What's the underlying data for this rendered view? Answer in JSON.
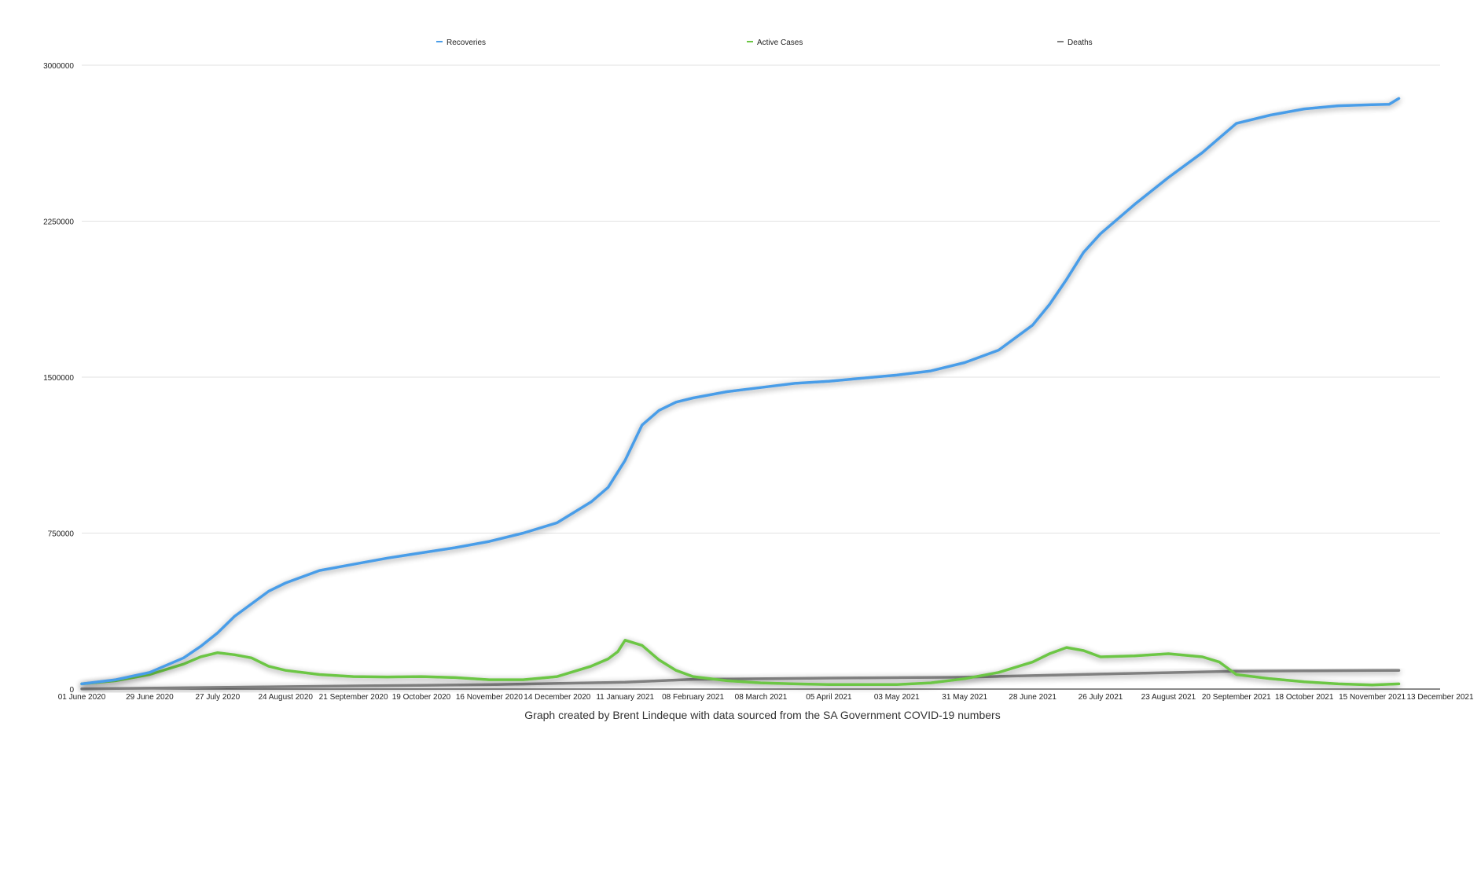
{
  "chart_data": {
    "type": "line",
    "title": "",
    "xlabel": "",
    "ylabel": "",
    "ylim": [
      0,
      3000000
    ],
    "yticks": [
      0,
      750000,
      1500000,
      2250000,
      3000000
    ],
    "ytick_labels": [
      "0",
      "750000",
      "1500000",
      "2250000",
      "3000000"
    ],
    "xlim": [
      "2020-06-01",
      "2021-12-13"
    ],
    "xtick_dates": [
      "2020-06-01",
      "2020-06-29",
      "2020-07-27",
      "2020-08-24",
      "2020-09-21",
      "2020-10-19",
      "2020-11-16",
      "2020-12-14",
      "2021-01-11",
      "2021-02-08",
      "2021-03-08",
      "2021-04-05",
      "2021-05-03",
      "2021-05-31",
      "2021-06-28",
      "2021-07-26",
      "2021-08-23",
      "2021-09-20",
      "2021-10-18",
      "2021-11-15",
      "2021-12-13"
    ],
    "xtick_labels": [
      "01 June 2020",
      "29 June 2020",
      "27 July 2020",
      "24 August 2020",
      "21 September 2020",
      "19 October 2020",
      "16 November 2020",
      "14 December 2020",
      "11 January 2021",
      "08 February 2021",
      "08 March 2021",
      "05 April 2021",
      "03 May 2021",
      "31 May 2021",
      "28 June 2021",
      "26 July 2021",
      "23 August 2021",
      "20 September 2021",
      "18 October 2021",
      "15 November 2021",
      "13 December 2021"
    ],
    "grid": true,
    "legend_position": "top",
    "caption": "Graph created by Brent Lindeque with data sourced from the SA Government COVID-19 numbers",
    "series": [
      {
        "name": "Recoveries",
        "color": "#4a9de8",
        "x": [
          "2020-06-01",
          "2020-06-15",
          "2020-06-29",
          "2020-07-13",
          "2020-07-20",
          "2020-07-27",
          "2020-08-03",
          "2020-08-10",
          "2020-08-17",
          "2020-08-24",
          "2020-09-07",
          "2020-09-21",
          "2020-10-05",
          "2020-10-19",
          "2020-11-02",
          "2020-11-16",
          "2020-11-30",
          "2020-12-14",
          "2020-12-28",
          "2021-01-04",
          "2021-01-11",
          "2021-01-18",
          "2021-01-25",
          "2021-02-01",
          "2021-02-08",
          "2021-02-22",
          "2021-03-08",
          "2021-03-22",
          "2021-04-05",
          "2021-04-19",
          "2021-05-03",
          "2021-05-17",
          "2021-05-31",
          "2021-06-14",
          "2021-06-28",
          "2021-07-05",
          "2021-07-12",
          "2021-07-19",
          "2021-07-26",
          "2021-08-09",
          "2021-08-23",
          "2021-09-06",
          "2021-09-13",
          "2021-09-20",
          "2021-10-04",
          "2021-10-18",
          "2021-11-01",
          "2021-11-15",
          "2021-11-22",
          "2021-11-26"
        ],
        "values": [
          25000,
          45000,
          80000,
          150000,
          205000,
          270000,
          350000,
          410000,
          470000,
          510000,
          570000,
          600000,
          630000,
          655000,
          680000,
          710000,
          750000,
          800000,
          900000,
          970000,
          1100000,
          1270000,
          1340000,
          1380000,
          1400000,
          1430000,
          1450000,
          1470000,
          1480000,
          1495000,
          1510000,
          1530000,
          1570000,
          1630000,
          1750000,
          1850000,
          1970000,
          2100000,
          2190000,
          2330000,
          2460000,
          2580000,
          2650000,
          2720000,
          2760000,
          2790000,
          2805000,
          2810000,
          2812000,
          2840000
        ]
      },
      {
        "name": "Active Cases",
        "color": "#6cc644",
        "x": [
          "2020-06-01",
          "2020-06-15",
          "2020-06-29",
          "2020-07-13",
          "2020-07-20",
          "2020-07-27",
          "2020-08-03",
          "2020-08-10",
          "2020-08-17",
          "2020-08-24",
          "2020-09-07",
          "2020-09-21",
          "2020-10-05",
          "2020-10-19",
          "2020-11-02",
          "2020-11-09",
          "2020-11-16",
          "2020-11-30",
          "2020-12-14",
          "2020-12-28",
          "2021-01-04",
          "2021-01-08",
          "2021-01-11",
          "2021-01-18",
          "2021-01-25",
          "2021-02-01",
          "2021-02-08",
          "2021-02-22",
          "2021-03-08",
          "2021-03-22",
          "2021-04-05",
          "2021-04-19",
          "2021-05-03",
          "2021-05-17",
          "2021-05-31",
          "2021-06-14",
          "2021-06-28",
          "2021-07-05",
          "2021-07-12",
          "2021-07-19",
          "2021-07-26",
          "2021-08-09",
          "2021-08-23",
          "2021-09-06",
          "2021-09-13",
          "2021-09-20",
          "2021-10-04",
          "2021-10-18",
          "2021-11-01",
          "2021-11-15",
          "2021-11-26"
        ],
        "values": [
          25000,
          40000,
          70000,
          120000,
          155000,
          175000,
          165000,
          150000,
          110000,
          90000,
          70000,
          60000,
          58000,
          60000,
          55000,
          50000,
          45000,
          45000,
          60000,
          110000,
          145000,
          180000,
          235000,
          210000,
          140000,
          90000,
          60000,
          40000,
          30000,
          25000,
          22000,
          22000,
          22000,
          30000,
          50000,
          80000,
          130000,
          170000,
          200000,
          185000,
          155000,
          160000,
          170000,
          155000,
          130000,
          70000,
          50000,
          35000,
          25000,
          20000,
          25000
        ]
      },
      {
        "name": "Deaths",
        "color": "#808080",
        "x": [
          "2020-06-01",
          "2020-07-27",
          "2020-09-21",
          "2020-11-16",
          "2021-01-11",
          "2021-02-08",
          "2021-04-05",
          "2021-05-31",
          "2021-07-26",
          "2021-08-23",
          "2021-09-20",
          "2021-11-15",
          "2021-11-26"
        ],
        "values": [
          1000,
          8000,
          15000,
          21000,
          33000,
          47000,
          53000,
          57000,
          72000,
          79000,
          86000,
          89000,
          89500
        ]
      }
    ]
  }
}
